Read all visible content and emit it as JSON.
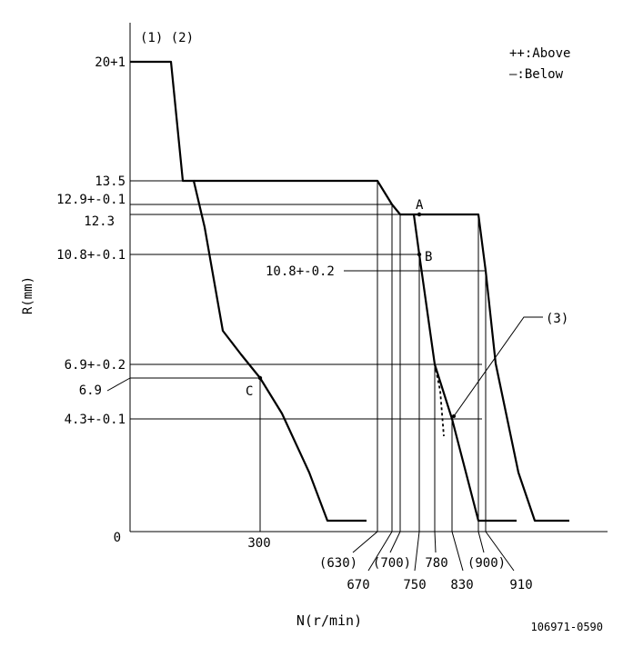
{
  "header": {
    "notes": "(1) (2)",
    "drawing_number": "106971-0590"
  },
  "legend": {
    "above": "++:Above",
    "below": "—:Below"
  },
  "axes": {
    "ylabel": "R(mm)",
    "xlabel": "N(r/min)",
    "origin": "0"
  },
  "y_labels": {
    "r20": "20+1",
    "r13_5": "13.5",
    "r12_9": "12.9+-0.1",
    "r12_3": "12.3",
    "r10_8": "10.8+-0.1",
    "r10_8b": "10.8+-0.2",
    "r6_9a": "6.9+-0.2",
    "r6_9": "6.9",
    "r4_3": "4.3+-0.1"
  },
  "x_labels": {
    "n300": "300",
    "n630": "(630)",
    "n670": "670",
    "n700": "(700)",
    "n750": "750",
    "n780": "780",
    "n830": "830",
    "n900": "(900)",
    "n910": "910"
  },
  "points": {
    "a": "A",
    "b": "B",
    "c": "C",
    "note3": "(3)"
  }
}
